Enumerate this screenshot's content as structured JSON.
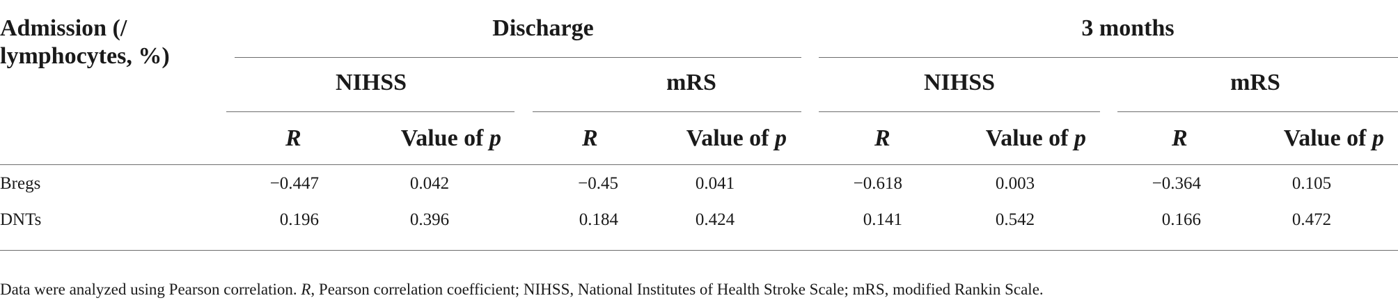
{
  "table": {
    "corner_header_line1": "Admission (/",
    "corner_header_line2": "lymphocytes, %)",
    "groups": [
      "Discharge",
      "3 months"
    ],
    "subgroups": [
      "NIHSS",
      "mRS",
      "NIHSS",
      "mRS"
    ],
    "col_r": "R",
    "col_p_prefix": "Value of ",
    "col_p_var": "p",
    "rows": [
      {
        "label": "Bregs",
        "values": [
          "−0.447",
          "0.042",
          "−0.45",
          "0.041",
          "−0.618",
          "0.003",
          "−0.364",
          "0.105"
        ]
      },
      {
        "label": "DNTs",
        "values": [
          "0.196",
          "0.396",
          "0.184",
          "0.424",
          "0.141",
          "0.542",
          "0.166",
          "0.472"
        ]
      }
    ]
  },
  "footnote": {
    "part1": "Data were analyzed using Pearson correlation. ",
    "r_italic": "R",
    "part2": ", Pearson correlation coefficient; NIHSS, National Institutes of Health Stroke Scale; mRS, modified Rankin Scale."
  }
}
